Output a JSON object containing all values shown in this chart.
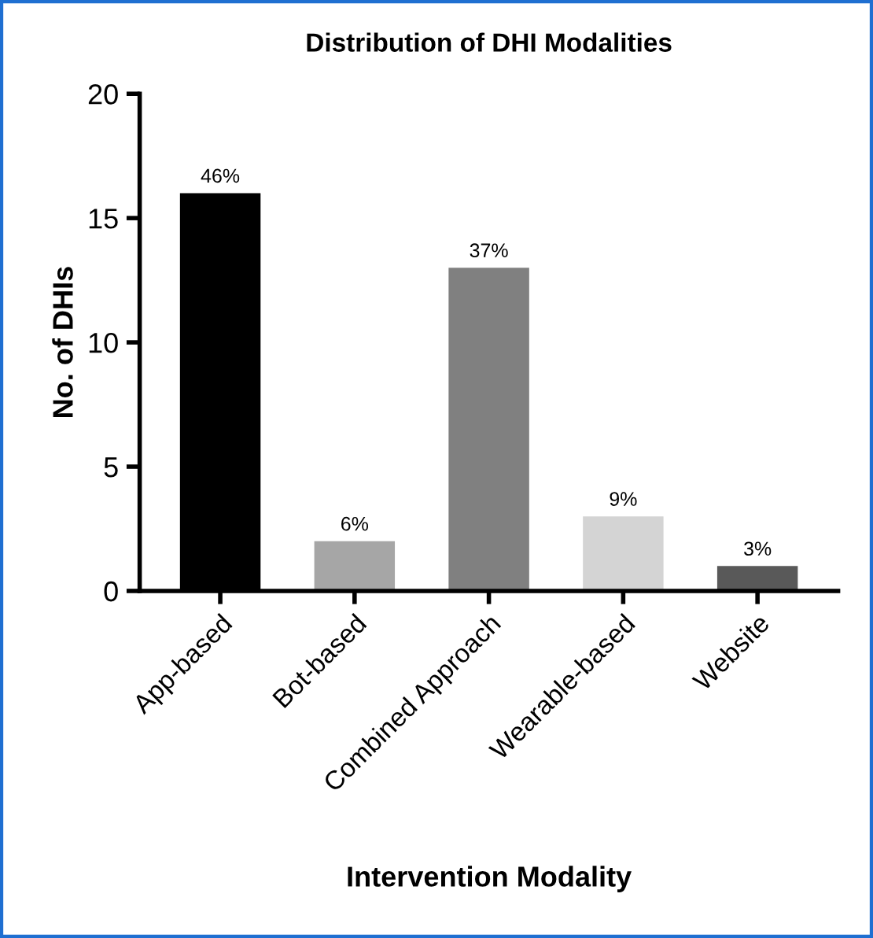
{
  "chart_data": {
    "type": "bar",
    "title": "Distribution of DHI Modalities",
    "xlabel": "Intervention Modality",
    "ylabel": "No. of DHIs",
    "categories": [
      "App-based",
      "Bot-based",
      "Combined Approach",
      "Wearable-based",
      "Website"
    ],
    "values": [
      16,
      2,
      13,
      3,
      1
    ],
    "colors": [
      "#000000",
      "#a6a6a6",
      "#808080",
      "#d4d4d4",
      "#595959"
    ],
    "annotations": [
      {
        "text": "46%",
        "x": "App-based",
        "y": 16
      },
      {
        "text": "6%",
        "x": "Bot-based",
        "y": 2
      },
      {
        "text": "37%",
        "x": "Combined Approach",
        "y": 13
      },
      {
        "text": "9%",
        "x": "Wearable-based",
        "y": 3
      },
      {
        "text": "3%",
        "x": "Website",
        "y": 1
      }
    ],
    "ylim": [
      0,
      20
    ],
    "yticks": [
      0,
      5,
      10,
      15,
      20
    ],
    "grid": false,
    "legend": false
  }
}
